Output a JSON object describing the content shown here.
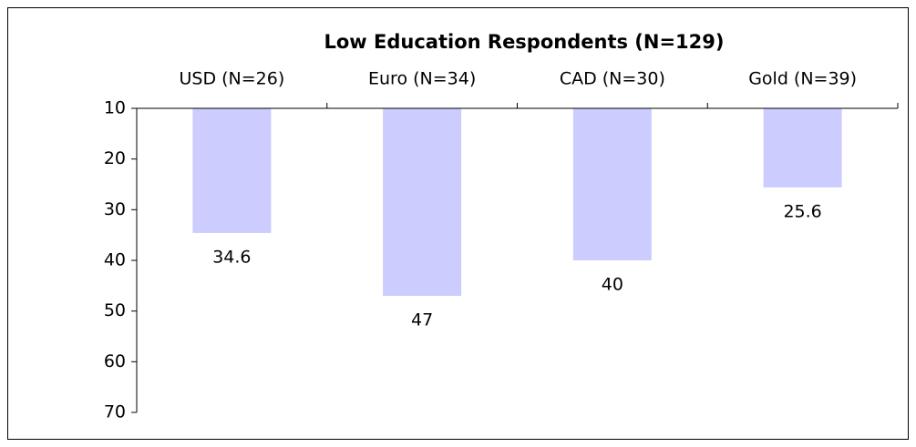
{
  "chart_data": {
    "type": "bar",
    "title": "Low Education Respondents (N=129)",
    "categories": [
      "USD (N=26)",
      "Euro (N=34)",
      "CAD (N=30)",
      "Gold (N=39)"
    ],
    "values": [
      34.6,
      47,
      40,
      25.6
    ],
    "color": "#ccccff",
    "ylim": [
      10,
      70
    ],
    "yticks": [
      10,
      20,
      30,
      40,
      50,
      60,
      70
    ],
    "y_inverted": true,
    "x_axis_position": "top",
    "grid": false
  }
}
